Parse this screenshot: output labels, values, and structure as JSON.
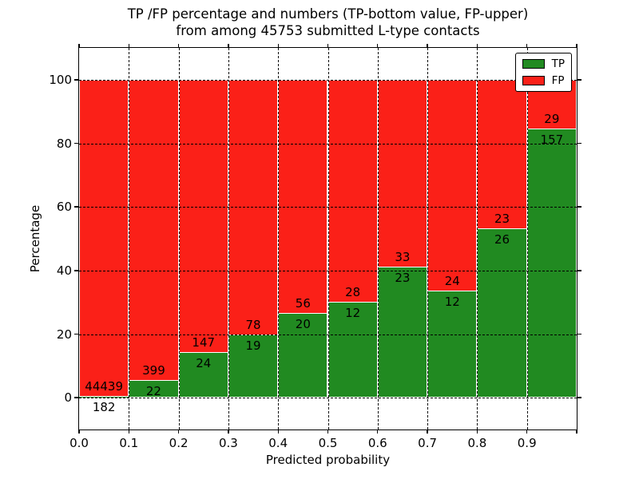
{
  "chart_data": {
    "type": "bar",
    "stacked": true,
    "title_lines": [
      "TP /FP percentage and numbers (TP-bottom value, FP-upper)",
      "from among 45753 submitted L-type contacts"
    ],
    "xlabel": "Predicted probability",
    "ylabel": "Percentage",
    "xlim": [
      0,
      1
    ],
    "ylim": [
      -10,
      110
    ],
    "bin_edges": [
      0.0,
      0.1,
      0.2,
      0.3,
      0.4,
      0.5,
      0.6,
      0.7,
      0.8,
      0.9,
      1.0
    ],
    "xtick_values": [
      0,
      0.1,
      0.2,
      0.3,
      0.4,
      0.5,
      0.6,
      0.7,
      0.8,
      0.9,
      1.0
    ],
    "xtick_labels": [
      "0.0",
      "0.1",
      "0.2",
      "0.3",
      "0.4",
      "0.5",
      "0.6",
      "0.7",
      "0.8",
      "0.9",
      ""
    ],
    "ytick_values": [
      0,
      20,
      40,
      60,
      80,
      100
    ],
    "ytick_labels": [
      "0",
      "20",
      "40",
      "60",
      "80",
      "100"
    ],
    "grid": "dotted",
    "bar_value_unit": "percent of bin total, TP bottom and FP top stacked to 100",
    "series": [
      {
        "name": "TP",
        "color": "#218a21",
        "counts": [
          182,
          22,
          24,
          19,
          20,
          12,
          23,
          12,
          26,
          157
        ]
      },
      {
        "name": "FP",
        "color": "#fb2018",
        "counts": [
          44439,
          399,
          147,
          78,
          56,
          28,
          33,
          24,
          23,
          29
        ]
      }
    ],
    "legend_position": "upper right"
  },
  "colors": {
    "bar_edge": "#ffffff",
    "grid": "#000000",
    "text": "#000000",
    "background": "#ffffff"
  }
}
